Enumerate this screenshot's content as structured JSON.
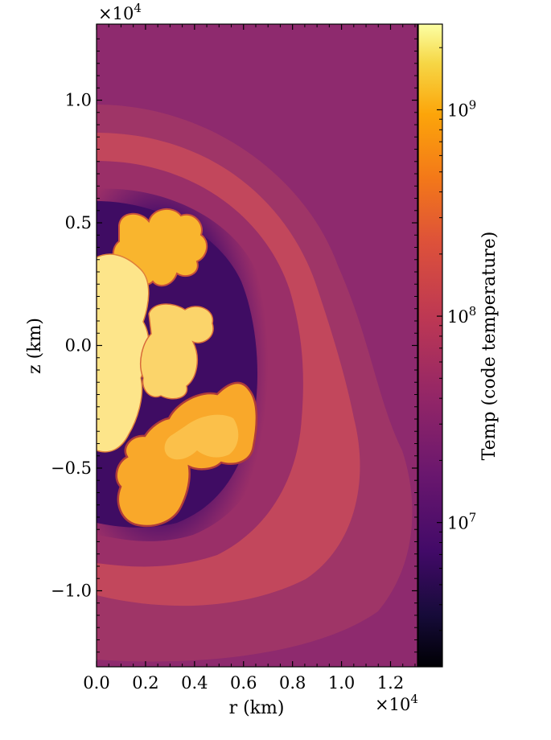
{
  "chart_data": {
    "type": "heatmap",
    "xlabel": "r  (km)",
    "ylabel": "z  (km)",
    "x_multiplier": "×10",
    "x_multiplier_exp": "4",
    "y_multiplier": "×10",
    "y_multiplier_exp": "4",
    "xlim": [
      0,
      13100
    ],
    "ylim": [
      -13100,
      13100
    ],
    "x_ticks": [
      0.0,
      0.2,
      0.4,
      0.6,
      0.8,
      1.0,
      1.2
    ],
    "x_tick_labels": [
      "0.0",
      "0.2",
      "0.4",
      "0.6",
      "0.8",
      "1.0",
      "1.2"
    ],
    "y_ticks": [
      -1.0,
      -0.5,
      0.0,
      0.5,
      1.0
    ],
    "y_tick_labels": [
      "−1.0",
      "−0.5",
      "0.0",
      "0.5",
      "1.0"
    ],
    "colorbar": {
      "label": "Temp  (code temperature)",
      "scale": "log",
      "range": [
        2000000,
        2600000000
      ],
      "ticks": [
        10000000,
        100000000,
        1000000000
      ],
      "tick_base": "10",
      "tick_exps": [
        "7",
        "8",
        "9"
      ],
      "colormap": "inferno"
    },
    "colors": {
      "background": "#8e2a6e",
      "hot_plume": "#f9b52e",
      "hot_core": "#fde58a",
      "cold_cavity": "#3f0c63",
      "shell": "#c84a5a"
    }
  }
}
